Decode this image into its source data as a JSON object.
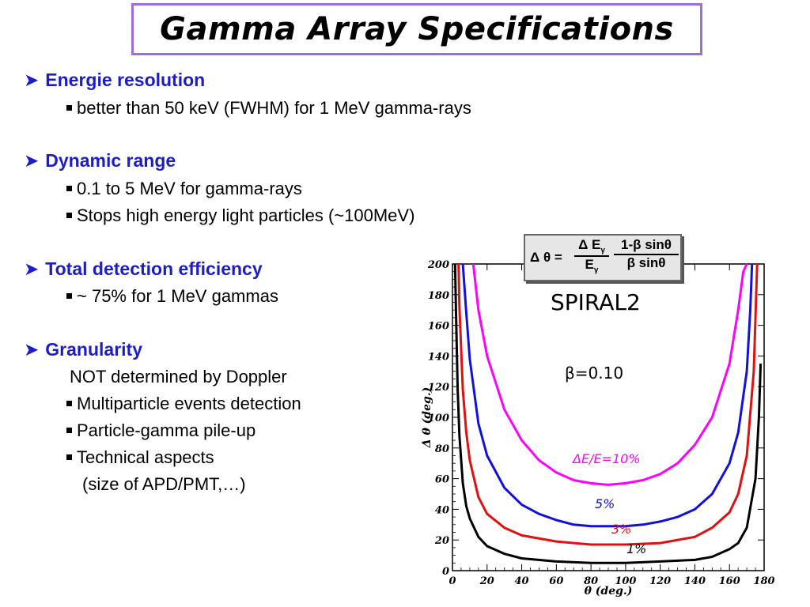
{
  "title": "Gamma Array Specifications",
  "sections": [
    {
      "heading": "Energie resolution",
      "items": [
        "better than 50 keV (FWHM) for 1 MeV gamma-rays"
      ]
    },
    {
      "heading": "Dynamic range",
      "items": [
        "0.1 to 5 MeV for gamma-rays",
        "Stops high energy light particles (~100MeV)"
      ]
    },
    {
      "heading": "Total detection efficiency",
      "items": [
        "~ 75% for 1 MeV gammas"
      ]
    },
    {
      "heading": "Granularity",
      "note": "NOT determined by Doppler",
      "items": [
        "Multiparticle events detection",
        "Particle-gamma pile-up",
        "Technical aspects"
      ],
      "item_note": "(size of APD/PMT,…)"
    }
  ],
  "formula": {
    "lhs": "Δ θ =",
    "num1": "Δ E",
    "num1_sub": "γ",
    "den1": "E",
    "den1_sub": "γ",
    "num2": "1-β sinθ",
    "den2": "β sinθ"
  },
  "annotations": {
    "spiral": "SPIRAL2",
    "beta": "β=0.10"
  },
  "colors": {
    "accent_blue": "#1c1cc8",
    "title_border": "#9b6fd6"
  },
  "chart_data": {
    "type": "line",
    "xlabel": "θ (deg.)",
    "ylabel": "Δ θ (deg.)",
    "xlim": [
      0,
      180
    ],
    "ylim": [
      0,
      200
    ],
    "xticks": [
      0,
      20,
      40,
      60,
      80,
      100,
      120,
      140,
      160,
      180
    ],
    "yticks": [
      0,
      20,
      40,
      60,
      80,
      100,
      120,
      140,
      160,
      180,
      200
    ],
    "series": [
      {
        "name": "ΔE/E=10%",
        "color": "#ff00ff",
        "min": 56,
        "x": [
          12,
          15,
          20,
          30,
          40,
          50,
          60,
          70,
          80,
          90,
          100,
          110,
          120,
          130,
          140,
          150,
          160,
          165,
          168,
          170
        ],
        "y": [
          200,
          170,
          140,
          105,
          85,
          72,
          64,
          59,
          57,
          56,
          57,
          59,
          63,
          70,
          82,
          100,
          135,
          170,
          195,
          200
        ]
      },
      {
        "name": "5%",
        "color": "#1010e0",
        "min": 29,
        "x": [
          6,
          8,
          10,
          15,
          20,
          30,
          40,
          50,
          60,
          70,
          80,
          90,
          100,
          110,
          120,
          130,
          140,
          150,
          160,
          165,
          170,
          172,
          173
        ],
        "y": [
          200,
          168,
          138,
          96,
          75,
          54,
          43,
          37,
          33,
          30,
          29,
          29,
          29,
          30,
          32,
          35,
          40,
          50,
          70,
          90,
          130,
          170,
          200
        ]
      },
      {
        "name": "3%",
        "color": "#e01010",
        "min": 17,
        "x": [
          3.5,
          4,
          6,
          8,
          10,
          15,
          20,
          30,
          40,
          60,
          80,
          90,
          100,
          120,
          140,
          150,
          160,
          165,
          170,
          174,
          176
        ],
        "y": [
          200,
          172,
          118,
          90,
          72,
          48,
          37,
          28,
          23,
          19,
          17,
          17,
          17,
          18,
          22,
          28,
          38,
          50,
          75,
          130,
          200
        ]
      },
      {
        "name": "1%",
        "color": "#000000",
        "min": 5,
        "x": [
          1.5,
          2,
          3,
          4,
          6,
          8,
          10,
          15,
          20,
          30,
          40,
          60,
          80,
          90,
          100,
          120,
          140,
          150,
          160,
          165,
          170,
          175,
          177,
          178
        ],
        "y": [
          200,
          170,
          118,
          88,
          57,
          42,
          34,
          22,
          16,
          11,
          8,
          6,
          5,
          5,
          5,
          6,
          7,
          9,
          14,
          18,
          28,
          60,
          100,
          135
        ]
      }
    ]
  }
}
